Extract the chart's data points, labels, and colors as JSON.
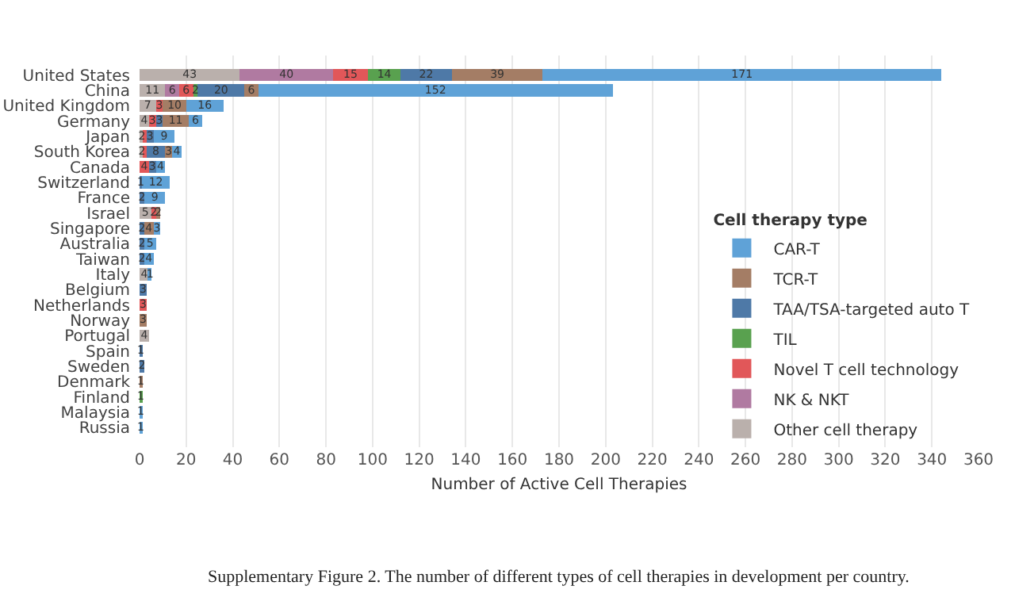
{
  "chart_data": {
    "type": "bar",
    "orientation": "horizontal",
    "stacked": true,
    "categories": [
      "United States",
      "China",
      "United Kingdom",
      "Germany",
      "Japan",
      "South Korea",
      "Canada",
      "Switzerland",
      "France",
      "Israel",
      "Singapore",
      "Australia",
      "Taiwan",
      "Italy",
      "Belgium",
      "Netherlands",
      "Norway",
      "Portugal",
      "Spain",
      "Sweden",
      "Denmark",
      "Finland",
      "Malaysia",
      "Russia"
    ],
    "series": [
      {
        "name": "Other cell therapy",
        "color": "#bab0ac",
        "values": [
          43,
          11,
          7,
          4,
          2,
          2,
          null,
          null,
          null,
          5,
          null,
          null,
          null,
          4,
          null,
          null,
          null,
          4,
          null,
          null,
          null,
          null,
          null,
          null
        ],
        "value_labels": [
          "43",
          "11",
          "7",
          "4",
          "2",
          "2",
          null,
          null,
          null,
          "5",
          null,
          null,
          null,
          "4",
          null,
          null,
          null,
          "4",
          null,
          null,
          null,
          null,
          null,
          null
        ]
      },
      {
        "name": "NK & NKT",
        "color": "#b07aa1",
        "values": [
          40,
          6,
          null,
          null,
          null,
          null,
          null,
          null,
          null,
          null,
          null,
          null,
          null,
          null,
          null,
          null,
          null,
          null,
          null,
          null,
          null,
          null,
          null,
          null
        ],
        "value_labels": [
          "40",
          "6",
          null,
          null,
          null,
          null,
          null,
          null,
          null,
          null,
          null,
          null,
          null,
          null,
          null,
          null,
          null,
          null,
          null,
          null,
          null,
          null,
          null,
          null
        ]
      },
      {
        "name": "Novel T cell technology",
        "color": "#e15759",
        "values": [
          15,
          6,
          3,
          3,
          1,
          1,
          4,
          null,
          null,
          2,
          null,
          null,
          null,
          null,
          null,
          3,
          null,
          null,
          null,
          null,
          null,
          null,
          null,
          null
        ],
        "value_labels": [
          "15",
          "6",
          "3",
          "3",
          null,
          null,
          "4",
          null,
          null,
          "2",
          null,
          null,
          null,
          null,
          null,
          "3",
          null,
          null,
          null,
          null,
          null,
          null,
          null,
          null
        ]
      },
      {
        "name": "TIL",
        "color": "#59a14f",
        "values": [
          14,
          2,
          null,
          null,
          null,
          null,
          null,
          null,
          null,
          null,
          null,
          null,
          null,
          null,
          null,
          null,
          null,
          null,
          null,
          null,
          null,
          1,
          null,
          null
        ],
        "value_labels": [
          "14",
          "2",
          null,
          null,
          null,
          null,
          null,
          null,
          null,
          null,
          null,
          null,
          null,
          null,
          null,
          null,
          null,
          null,
          null,
          null,
          null,
          "1",
          null,
          null
        ]
      },
      {
        "name": "TAA/TSA-targeted auto T",
        "color": "#4e79a7",
        "values": [
          22,
          20,
          null,
          3,
          3,
          8,
          3,
          1,
          2,
          null,
          2,
          2,
          2,
          null,
          3,
          null,
          null,
          null,
          1,
          2,
          null,
          null,
          null,
          null
        ],
        "value_labels": [
          "22",
          "20",
          null,
          "3",
          "3",
          "8",
          "3",
          "1",
          "2",
          null,
          "2",
          "2",
          "2",
          null,
          "3",
          null,
          null,
          null,
          "1",
          "2",
          null,
          null,
          null,
          null
        ]
      },
      {
        "name": "TCR-T",
        "color": "#a47d65",
        "values": [
          39,
          6,
          10,
          11,
          null,
          3,
          null,
          null,
          null,
          2,
          4,
          null,
          null,
          null,
          null,
          null,
          3,
          null,
          null,
          null,
          1,
          null,
          null,
          null
        ],
        "value_labels": [
          "39",
          "6",
          "10",
          "11",
          null,
          "3",
          null,
          null,
          null,
          "2",
          "4",
          null,
          null,
          null,
          null,
          null,
          "3",
          null,
          null,
          null,
          "1",
          null,
          null,
          null
        ]
      },
      {
        "name": "CAR-T",
        "color": "#5fa2d7",
        "values": [
          171,
          152,
          16,
          6,
          9,
          4,
          4,
          12,
          9,
          null,
          3,
          5,
          4,
          1,
          null,
          null,
          null,
          null,
          null,
          null,
          null,
          null,
          1,
          1
        ],
        "value_labels": [
          "171",
          "152",
          "16",
          "6",
          "9",
          "4",
          "4",
          "12",
          "9",
          null,
          "3",
          "5",
          "4",
          "1",
          null,
          null,
          null,
          null,
          null,
          null,
          null,
          null,
          "1",
          "1"
        ]
      }
    ],
    "xlim": [
      0,
      360
    ],
    "xticks": [
      0,
      20,
      40,
      60,
      80,
      100,
      120,
      140,
      160,
      180,
      200,
      220,
      240,
      260,
      280,
      300,
      320,
      340,
      360
    ],
    "xlabel": "Number of Active Cell Therapies",
    "legend_title": "Cell therapy type",
    "legend": "right",
    "grid": "x",
    "annotations": [
      "Supplementary Figure 2. The number of different types of cell therapies in development per country."
    ]
  }
}
